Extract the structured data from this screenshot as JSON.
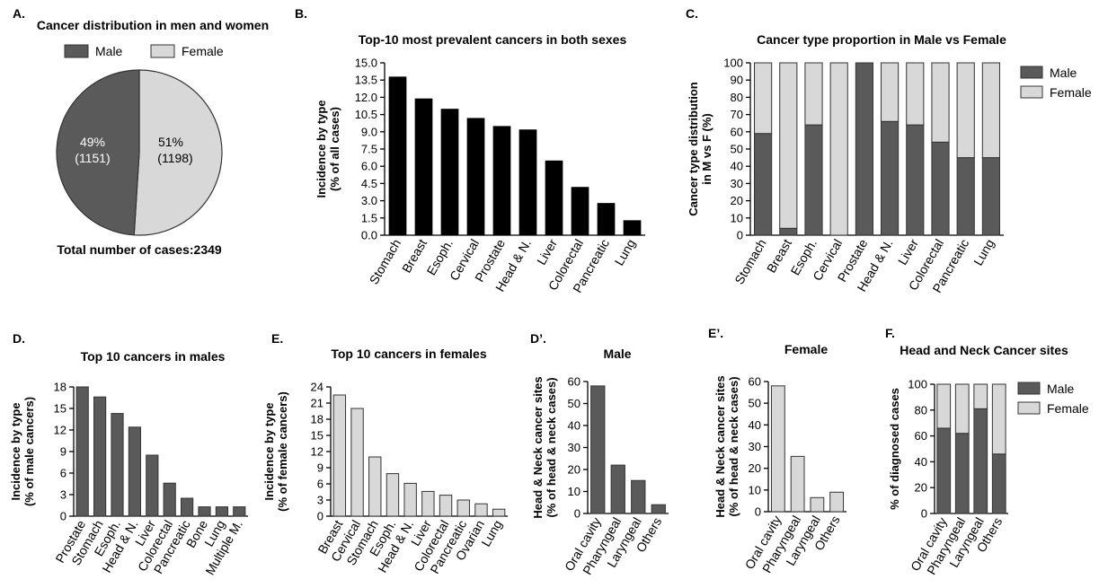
{
  "colors": {
    "male": "#5a5a5a",
    "female": "#d8d8d8",
    "black": "#000000",
    "outline": "#333333"
  },
  "panel_labels": {
    "A": "A.",
    "B": "B.",
    "C": "C.",
    "D": "D.",
    "E": "E.",
    "Dp": "D’.",
    "Ep": "E’.",
    "F": "F."
  },
  "chart_data": [
    {
      "id": "A",
      "type": "pie",
      "title": "Cancer distribution in men and women",
      "legend": [
        "Male",
        "Female"
      ],
      "slices": [
        {
          "name": "Male",
          "value": 1151,
          "percent_label": "49%",
          "count_label": "(1151)"
        },
        {
          "name": "Female",
          "value": 1198,
          "percent_label": "51%",
          "count_label": "(1198)"
        }
      ],
      "footer": "Total number of cases:2349"
    },
    {
      "id": "B",
      "type": "bar",
      "title": "Top-10 most prevalent cancers in both sexes",
      "ylabel_lines": [
        "Incidence by type",
        "(% of all cases)"
      ],
      "ylim": [
        0,
        15
      ],
      "yticks": [
        "0.0",
        "1.5",
        "3.0",
        "4.5",
        "6.0",
        "7.5",
        "9.0",
        "10.5",
        "12.0",
        "13.5",
        "15.0"
      ],
      "categories": [
        "Stomach",
        "Breast",
        "Esoph.",
        "Cervical",
        "Prostate",
        "Head & N.",
        "Liver",
        "Colorectal",
        "Pancreatic",
        "Lung"
      ],
      "values": [
        13.8,
        11.9,
        11.0,
        10.2,
        9.5,
        9.2,
        6.5,
        4.2,
        2.8,
        1.3
      ]
    },
    {
      "id": "C",
      "type": "bar",
      "stacked": true,
      "title": "Cancer type proportion in Male vs Female",
      "ylabel_lines": [
        "Cancer type distribution",
        "in M vs F (%)"
      ],
      "ylim": [
        0,
        100
      ],
      "yticks": [
        "0",
        "10",
        "20",
        "30",
        "40",
        "50",
        "60",
        "70",
        "80",
        "90",
        "100"
      ],
      "legend": [
        "Male",
        "Female"
      ],
      "categories": [
        "Stomach",
        "Breast",
        "Esoph.",
        "Cervical",
        "Prostate",
        "Head & N.",
        "Liver",
        "Colorectal",
        "Pancreatic",
        "Lung"
      ],
      "series": [
        {
          "name": "Male",
          "values": [
            59,
            4,
            64,
            0,
            100,
            66,
            64,
            54,
            45,
            45
          ]
        },
        {
          "name": "Female",
          "values": [
            41,
            96,
            36,
            100,
            0,
            34,
            36,
            46,
            55,
            55
          ]
        }
      ]
    },
    {
      "id": "D",
      "type": "bar",
      "title": "Top 10 cancers in males",
      "ylabel_lines": [
        "Incidence by type",
        "(% of male cancers)"
      ],
      "ylim": [
        0,
        18
      ],
      "yticks": [
        "0",
        "3",
        "6",
        "9",
        "12",
        "15",
        "18"
      ],
      "categories": [
        "Prostate",
        "Stomach",
        "Esoph.",
        "Head & N.",
        "Liver",
        "Colorectal",
        "Pancreatic",
        "Bone",
        "Lung",
        "Multiple M."
      ],
      "values": [
        18.0,
        16.6,
        14.3,
        12.4,
        8.5,
        4.6,
        2.5,
        1.3,
        1.3,
        1.3
      ]
    },
    {
      "id": "E",
      "type": "bar",
      "title": "Top 10 cancers in females",
      "ylabel_lines": [
        "Incidence by type",
        "(% of female cancers)"
      ],
      "ylim": [
        0,
        24
      ],
      "yticks": [
        "0",
        "3",
        "6",
        "9",
        "12",
        "15",
        "18",
        "21",
        "24"
      ],
      "categories": [
        "Breast",
        "Cervical",
        "Stomach",
        "Esoph.",
        "Head & N.",
        "Liver",
        "Colorectal",
        "Pancreatic",
        "Ovarian",
        "Lung"
      ],
      "values": [
        22.5,
        20.0,
        11.0,
        7.9,
        6.1,
        4.6,
        3.9,
        3.0,
        2.3,
        1.3
      ]
    },
    {
      "id": "Dp",
      "type": "bar",
      "title": "Male",
      "ylabel_lines": [
        "Head & Neck cancer sites",
        "(% of head & neck cases)"
      ],
      "ylim": [
        0,
        60
      ],
      "yticks": [
        "0",
        "10",
        "20",
        "30",
        "40",
        "50",
        "60"
      ],
      "categories": [
        "Oral cavity",
        "Pharyngeal",
        "Laryngeal",
        "Others"
      ],
      "values": [
        58,
        22,
        15,
        4
      ]
    },
    {
      "id": "Ep",
      "type": "bar",
      "title": "Female",
      "ylabel_lines": [
        "Head & Neck cancer sites",
        "(% of head & neck cases)"
      ],
      "ylim": [
        0,
        60
      ],
      "yticks": [
        "0",
        "10",
        "20",
        "30",
        "40",
        "50",
        "60"
      ],
      "categories": [
        "Oral cavity",
        "Pharyngeal",
        "Laryngeal",
        "Others"
      ],
      "values": [
        58,
        25.5,
        6.5,
        9
      ]
    },
    {
      "id": "F",
      "type": "bar",
      "stacked": true,
      "title": "Head and Neck Cancer sites",
      "ylabel_lines": [
        "% of diagnosed cases"
      ],
      "ylim": [
        0,
        100
      ],
      "yticks": [
        "0",
        "20",
        "40",
        "60",
        "80",
        "100"
      ],
      "legend": [
        "Male",
        "Female"
      ],
      "categories": [
        "Oral cavity",
        "Pharyngeal",
        "Laryngeal",
        "Others"
      ],
      "series": [
        {
          "name": "Male",
          "values": [
            66,
            62,
            81,
            46
          ]
        },
        {
          "name": "Female",
          "values": [
            34,
            38,
            19,
            54
          ]
        }
      ]
    }
  ]
}
